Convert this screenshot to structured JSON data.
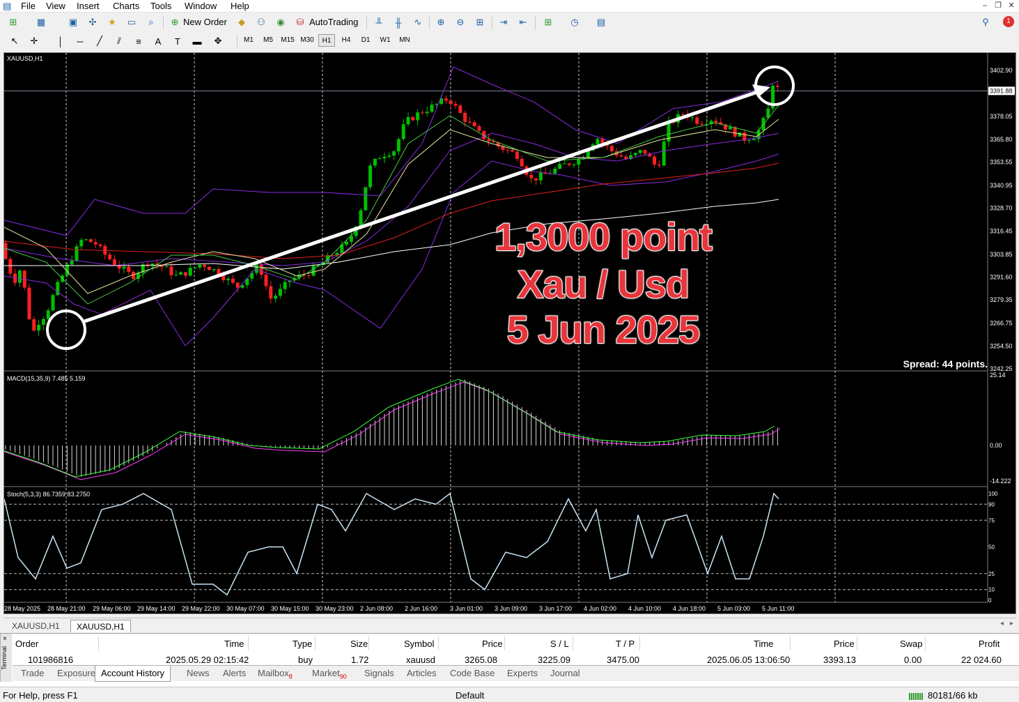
{
  "menu": [
    "File",
    "View",
    "Insert",
    "Charts",
    "Tools",
    "Window",
    "Help"
  ],
  "toolbar": {
    "new_order": "New Order",
    "autotrading": "AutoTrading",
    "timeframes": [
      "M1",
      "M5",
      "M15",
      "M30",
      "H1",
      "H4",
      "D1",
      "W1",
      "MN"
    ],
    "selected_timeframe": "H1"
  },
  "notification_count": "1",
  "chart": {
    "symbol": "XAUUSD,H1",
    "price_labels": [
      "3402.90",
      "3391.88",
      "3378.05",
      "3365.80",
      "3353.55",
      "3340.95",
      "3328.70",
      "3316.45",
      "3303.85",
      "3291.60",
      "3279.35",
      "3266.75",
      "3254.50",
      "3242.25"
    ],
    "current_price": "3391.88",
    "time_labels": [
      "28 May 2025",
      "28 May 21:00",
      "29 May 06:00",
      "29 May 14:00",
      "29 May 22:00",
      "30 May 07:00",
      "30 May 15:00",
      "30 May 23:00",
      "2 Jun 08:00",
      "2 Jun 16:00",
      "3 Jun 01:00",
      "3 Jun 09:00",
      "3 Jun 17:00",
      "4 Jun 02:00",
      "4 Jun 10:00",
      "4 Jun 18:00",
      "5 Jun 03:00",
      "5 Jun 11:00"
    ],
    "overlay_text": [
      "1,3000 point",
      "Xau / Usd",
      "5 Jun 2025"
    ],
    "spread": "Spread: 44 points.",
    "macd_label": "MACD(15,35,9) 7.485 5.159",
    "macd_axis": [
      "25.14",
      "0.00",
      "-14.222"
    ],
    "stoch_label": "Stoch(5,3,3) 86.7359 83.2750",
    "stoch_axis": [
      "100",
      "90",
      "75",
      "50",
      "25",
      "10",
      "0"
    ],
    "colors": {
      "bull": "#00c000",
      "bear": "#ff2020",
      "band": "#8a2be2",
      "ma_red": "#e02020",
      "ma_white": "#ffffff",
      "macd_signal": "#ff40ff",
      "macd_line": "#40ff40",
      "stoch": "#c8e6f5"
    }
  },
  "chart_tabs": [
    "XAUUSD,H1",
    "XAUUSD,H1"
  ],
  "terminal": {
    "side_label": "Terminal",
    "headers": [
      "Order",
      "Time",
      "Type",
      "Size",
      "Symbol",
      "Price",
      "S / L",
      "T / P",
      "Time",
      "Price",
      "Swap",
      "Profit"
    ],
    "row": [
      "101986816",
      "2025.05.29 02:15:42",
      "buy",
      "1.72",
      "xauusd",
      "3265.08",
      "3225.09",
      "3475.00",
      "2025.06.05 13:06:50",
      "3393.13",
      "0.00",
      "22 024.60"
    ],
    "tabs": [
      {
        "label": "Trade"
      },
      {
        "label": "Exposure"
      },
      {
        "label": "Account History",
        "active": true
      },
      {
        "label": "News"
      },
      {
        "label": "Alerts"
      },
      {
        "label": "Mailbox",
        "badge": "8"
      },
      {
        "label": "Market",
        "badge": "90"
      },
      {
        "label": "Signals"
      },
      {
        "label": "Articles"
      },
      {
        "label": "Code Base"
      },
      {
        "label": "Experts"
      },
      {
        "label": "Journal"
      }
    ]
  },
  "status": {
    "help": "For Help, press F1",
    "profile": "Default",
    "traffic": "80181/66 kb"
  }
}
